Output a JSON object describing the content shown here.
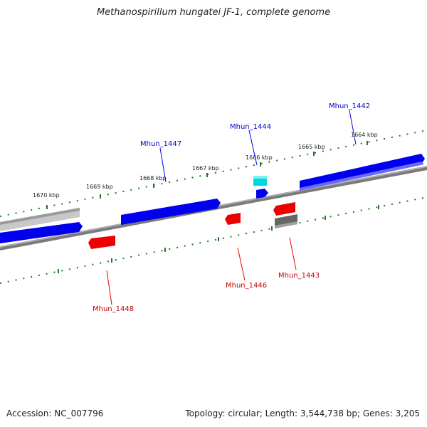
{
  "title": "Methanospirillum hungatei JF-1, complete genome",
  "footer": {
    "accession": "Accession: NC_007796",
    "summary": "Topology: circular; Length: 3,544,738 bp; Genes: 3,205"
  },
  "colors": {
    "forward_gene": "#0000ee",
    "reverse_gene": "#ee0000",
    "rna_gene": "#00d8e0",
    "other_gray": "#666666",
    "ruler": "#1f7a1f",
    "axis": "#7a7a7a"
  },
  "scale_labels": [
    "1664 kbp",
    "1665 kbp",
    "1666 kbp",
    "1667 kbp",
    "1668 kbp",
    "1669 kbp",
    "1670 kbp"
  ],
  "gene_labels": {
    "mhun_1442": "Mhun_1442",
    "mhun_1443": "Mhun_1443",
    "mhun_1444": "Mhun_1444",
    "mhun_1446": "Mhun_1446",
    "mhun_1447": "Mhun_1447",
    "mhun_1448": "Mhun_1448"
  }
}
